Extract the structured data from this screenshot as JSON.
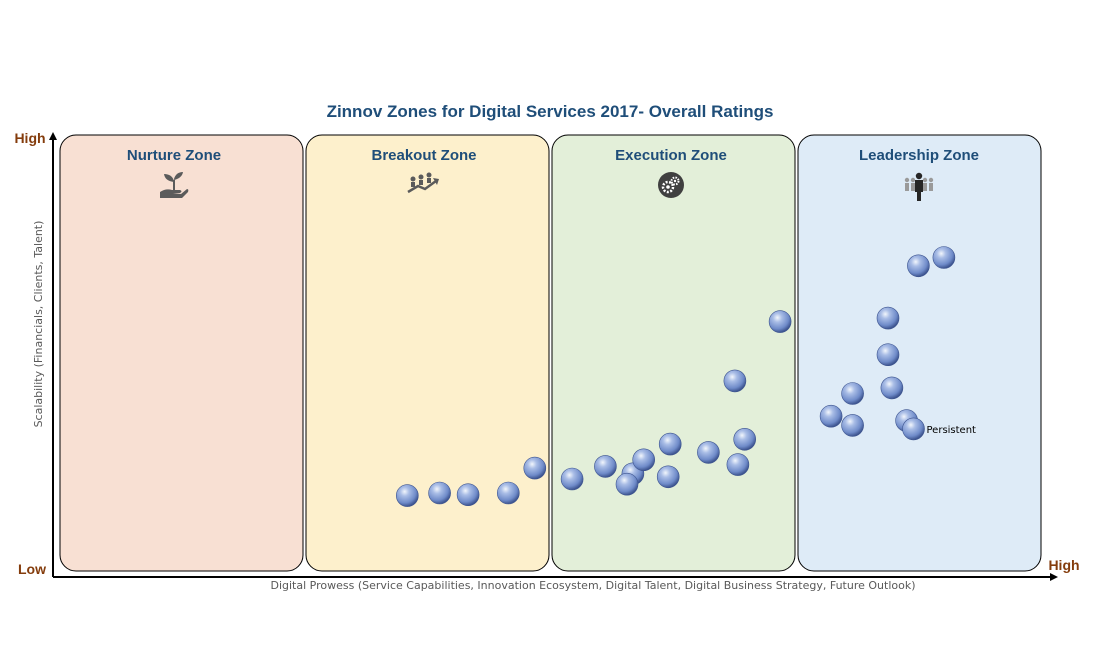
{
  "chart_data": {
    "type": "scatter",
    "title": "Zinnov Zones for Digital Services 2017- Overall Ratings",
    "xlabel": "Digital Prowess (Service Capabilities, Innovation Ecosystem, Digital Talent, Digital Business Strategy, Future Outlook)",
    "ylabel": "Scalability (Financials, Clients, Talent)",
    "x_low": "Low",
    "x_high": "High",
    "y_high": "High",
    "xlim": [
      0,
      100
    ],
    "ylim": [
      0,
      100
    ],
    "grid": false,
    "zones": [
      {
        "name": "Nurture Zone",
        "color": "#f8e0d3",
        "icon": "plant-hand-icon"
      },
      {
        "name": "Breakout Zone",
        "color": "#fdf0cc",
        "icon": "rising-growth-icon"
      },
      {
        "name": "Execution Zone",
        "color": "#e3efd9",
        "icon": "gears-icon"
      },
      {
        "name": "Leadership Zone",
        "color": "#deebf7",
        "icon": "leader-group-icon"
      }
    ],
    "point_color": "#8ea9db",
    "series": [
      {
        "points": [
          {
            "x": 35.4,
            "y": 17.3
          },
          {
            "x": 38.7,
            "y": 17.9
          },
          {
            "x": 41.6,
            "y": 17.5
          },
          {
            "x": 45.7,
            "y": 17.9
          },
          {
            "x": 48.4,
            "y": 23.6
          },
          {
            "x": 52.2,
            "y": 21.1
          },
          {
            "x": 55.6,
            "y": 24.0
          },
          {
            "x": 58.4,
            "y": 22.3
          },
          {
            "x": 57.8,
            "y": 19.9
          },
          {
            "x": 59.5,
            "y": 25.5
          },
          {
            "x": 62.2,
            "y": 29.1
          },
          {
            "x": 62.0,
            "y": 21.6
          },
          {
            "x": 66.1,
            "y": 27.2
          },
          {
            "x": 69.1,
            "y": 24.4
          },
          {
            "x": 69.8,
            "y": 30.2
          },
          {
            "x": 68.8,
            "y": 43.6
          },
          {
            "x": 73.4,
            "y": 57.2
          },
          {
            "x": 78.6,
            "y": 35.5
          },
          {
            "x": 80.8,
            "y": 40.7
          },
          {
            "x": 80.8,
            "y": 33.4
          },
          {
            "x": 84.4,
            "y": 58.0
          },
          {
            "x": 84.4,
            "y": 49.6
          },
          {
            "x": 84.8,
            "y": 42.0
          },
          {
            "x": 86.3,
            "y": 34.5
          },
          {
            "x": 87.5,
            "y": 70.0
          },
          {
            "x": 90.1,
            "y": 71.9
          },
          {
            "x": 87.0,
            "y": 32.6,
            "label": "Persistent"
          }
        ]
      }
    ]
  }
}
